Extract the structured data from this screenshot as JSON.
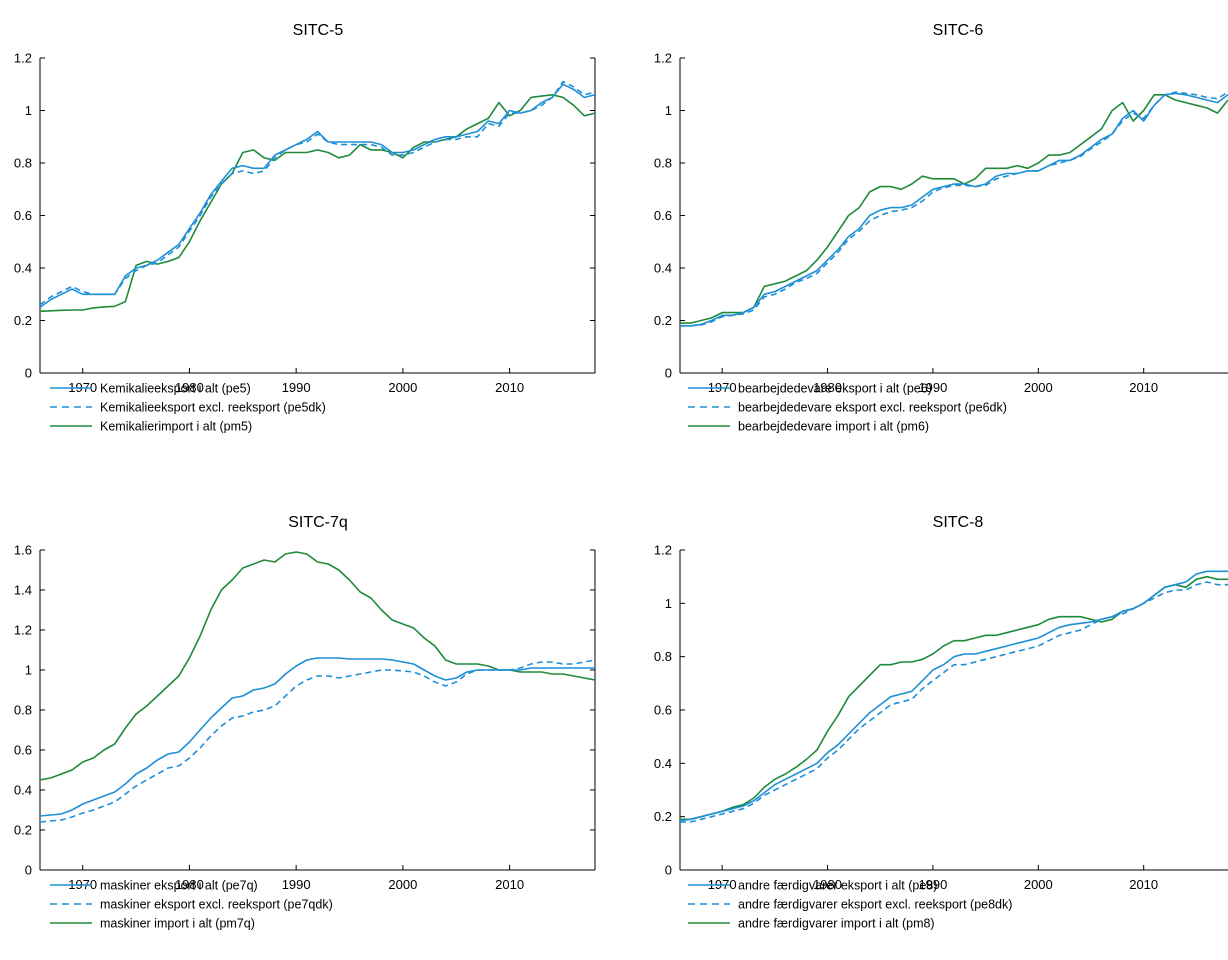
{
  "colors": {
    "export": "#1f8fd6",
    "import": "#1f8a3c"
  },
  "chart_data": [
    {
      "type": "line",
      "title": "SITC-5",
      "xlim": [
        1966,
        2018
      ],
      "ylim": [
        0,
        1.2
      ],
      "xticks": [
        1970,
        1980,
        1990,
        2000,
        2010
      ],
      "yticks": [
        0,
        0.2,
        0.4,
        0.6,
        0.8,
        1,
        1.2
      ],
      "ytick_labels": [
        "0",
        "0.2",
        "0.4",
        "0.6",
        "0.8",
        "1",
        "1.2"
      ],
      "x": [
        1966,
        1967,
        1968,
        1969,
        1970,
        1971,
        1972,
        1973,
        1974,
        1975,
        1976,
        1977,
        1978,
        1979,
        1980,
        1981,
        1982,
        1983,
        1984,
        1985,
        1986,
        1987,
        1988,
        1989,
        1990,
        1991,
        1992,
        1993,
        1994,
        1995,
        1996,
        1997,
        1998,
        1999,
        2000,
        2001,
        2002,
        2003,
        2004,
        2005,
        2006,
        2007,
        2008,
        2009,
        2010,
        2011,
        2012,
        2013,
        2014,
        2015,
        2016,
        2017,
        2018
      ],
      "series": [
        {
          "name": "Kemikalieeksport i alt (pe5)",
          "style": "solid",
          "color": "export",
          "values": [
            0.25,
            0.28,
            0.3,
            0.32,
            0.3,
            0.3,
            0.3,
            0.3,
            0.37,
            0.4,
            0.41,
            0.43,
            0.46,
            0.49,
            0.55,
            0.61,
            0.68,
            0.73,
            0.78,
            0.79,
            0.78,
            0.78,
            0.83,
            0.85,
            0.87,
            0.89,
            0.92,
            0.88,
            0.88,
            0.88,
            0.88,
            0.88,
            0.87,
            0.84,
            0.84,
            0.85,
            0.87,
            0.89,
            0.9,
            0.9,
            0.91,
            0.92,
            0.96,
            0.95,
            1.0,
            0.99,
            1.0,
            1.03,
            1.05,
            1.1,
            1.08,
            1.05,
            1.06
          ]
        },
        {
          "name": "Kemikalieeksport excl. reeksport (pe5dk)",
          "style": "dashed",
          "color": "export",
          "values": [
            0.26,
            0.29,
            0.31,
            0.33,
            0.31,
            0.3,
            0.3,
            0.3,
            0.36,
            0.39,
            0.41,
            0.42,
            0.45,
            0.48,
            0.54,
            0.6,
            0.67,
            0.72,
            0.76,
            0.77,
            0.76,
            0.77,
            0.82,
            0.85,
            0.87,
            0.88,
            0.91,
            0.88,
            0.87,
            0.87,
            0.87,
            0.87,
            0.86,
            0.83,
            0.83,
            0.84,
            0.86,
            0.88,
            0.89,
            0.89,
            0.9,
            0.9,
            0.95,
            0.94,
            0.99,
            0.99,
            1.0,
            1.02,
            1.05,
            1.11,
            1.09,
            1.06,
            1.07
          ]
        },
        {
          "name": "Kemikalierimport i alt (pm5)",
          "style": "solid",
          "color": "import",
          "values": [
            0.235,
            0.237,
            0.239,
            0.24,
            0.24,
            0.248,
            0.252,
            0.254,
            0.272,
            0.41,
            0.425,
            0.415,
            0.425,
            0.44,
            0.5,
            0.58,
            0.65,
            0.72,
            0.76,
            0.84,
            0.85,
            0.82,
            0.81,
            0.84,
            0.84,
            0.84,
            0.85,
            0.84,
            0.82,
            0.83,
            0.87,
            0.85,
            0.85,
            0.84,
            0.82,
            0.86,
            0.88,
            0.88,
            0.89,
            0.9,
            0.93,
            0.95,
            0.97,
            1.03,
            0.98,
            1.0,
            1.05,
            1.055,
            1.06,
            1.05,
            1.02,
            0.98,
            0.99
          ]
        }
      ]
    },
    {
      "type": "line",
      "title": "SITC-6",
      "xlim": [
        1966,
        2018
      ],
      "ylim": [
        0,
        1.2
      ],
      "xticks": [
        1970,
        1980,
        1990,
        2000,
        2010
      ],
      "yticks": [
        0,
        0.2,
        0.4,
        0.6,
        0.8,
        1,
        1.2
      ],
      "ytick_labels": [
        "0",
        "0.2",
        "0.4",
        "0.6",
        "0.8",
        "1",
        "1.2"
      ],
      "x": [
        1966,
        1967,
        1968,
        1969,
        1970,
        1971,
        1972,
        1973,
        1974,
        1975,
        1976,
        1977,
        1978,
        1979,
        1980,
        1981,
        1982,
        1983,
        1984,
        1985,
        1986,
        1987,
        1988,
        1989,
        1990,
        1991,
        1992,
        1993,
        1994,
        1995,
        1996,
        1997,
        1998,
        1999,
        2000,
        2001,
        2002,
        2003,
        2004,
        2005,
        2006,
        2007,
        2008,
        2009,
        2010,
        2011,
        2012,
        2013,
        2014,
        2015,
        2016,
        2017,
        2018
      ],
      "series": [
        {
          "name": "bearbejdedevare eksport i alt (pe6)",
          "style": "solid",
          "color": "export",
          "values": [
            0.18,
            0.18,
            0.185,
            0.2,
            0.22,
            0.22,
            0.23,
            0.25,
            0.3,
            0.31,
            0.33,
            0.35,
            0.37,
            0.39,
            0.43,
            0.47,
            0.52,
            0.55,
            0.6,
            0.62,
            0.63,
            0.63,
            0.64,
            0.67,
            0.7,
            0.71,
            0.72,
            0.72,
            0.71,
            0.72,
            0.75,
            0.76,
            0.76,
            0.77,
            0.77,
            0.79,
            0.81,
            0.81,
            0.83,
            0.86,
            0.89,
            0.91,
            0.97,
            1.0,
            0.96,
            1.02,
            1.06,
            1.065,
            1.06,
            1.05,
            1.04,
            1.03,
            1.06
          ]
        },
        {
          "name": "bearbejdedevare eksport excl. reeksport (pe6dk)",
          "style": "dashed",
          "color": "export",
          "values": [
            0.18,
            0.18,
            0.183,
            0.195,
            0.215,
            0.22,
            0.225,
            0.24,
            0.29,
            0.3,
            0.32,
            0.345,
            0.36,
            0.38,
            0.42,
            0.46,
            0.51,
            0.54,
            0.58,
            0.6,
            0.615,
            0.62,
            0.63,
            0.655,
            0.69,
            0.705,
            0.715,
            0.715,
            0.71,
            0.715,
            0.74,
            0.75,
            0.76,
            0.77,
            0.77,
            0.79,
            0.8,
            0.81,
            0.825,
            0.855,
            0.88,
            0.91,
            0.96,
            0.99,
            0.97,
            1.02,
            1.06,
            1.07,
            1.065,
            1.06,
            1.05,
            1.045,
            1.07
          ]
        },
        {
          "name": "bearbejdedevare import i alt (pm6)",
          "style": "solid",
          "color": "import",
          "values": [
            0.19,
            0.19,
            0.2,
            0.21,
            0.23,
            0.23,
            0.23,
            0.25,
            0.33,
            0.34,
            0.35,
            0.37,
            0.39,
            0.43,
            0.48,
            0.54,
            0.6,
            0.63,
            0.69,
            0.71,
            0.71,
            0.7,
            0.72,
            0.75,
            0.74,
            0.74,
            0.74,
            0.72,
            0.74,
            0.78,
            0.78,
            0.78,
            0.79,
            0.78,
            0.8,
            0.83,
            0.83,
            0.84,
            0.87,
            0.9,
            0.93,
            1.0,
            1.03,
            0.96,
            1.0,
            1.06,
            1.06,
            1.04,
            1.03,
            1.02,
            1.01,
            0.99,
            1.04
          ]
        }
      ]
    },
    {
      "type": "line",
      "title": "SITC-7q",
      "xlim": [
        1966,
        2018
      ],
      "ylim": [
        0,
        1.6
      ],
      "xticks": [
        1970,
        1980,
        1990,
        2000,
        2010
      ],
      "yticks": [
        0,
        0.2,
        0.4,
        0.6,
        0.8,
        1,
        1.2,
        1.4,
        1.6
      ],
      "ytick_labels": [
        "0",
        "0.2",
        "0.4",
        "0.6",
        "0.8",
        "1",
        "1.2",
        "1.4",
        "1.6"
      ],
      "x": [
        1966,
        1967,
        1968,
        1969,
        1970,
        1971,
        1972,
        1973,
        1974,
        1975,
        1976,
        1977,
        1978,
        1979,
        1980,
        1981,
        1982,
        1983,
        1984,
        1985,
        1986,
        1987,
        1988,
        1989,
        1990,
        1991,
        1992,
        1993,
        1994,
        1995,
        1996,
        1997,
        1998,
        1999,
        2000,
        2001,
        2002,
        2003,
        2004,
        2005,
        2006,
        2007,
        2008,
        2009,
        2010,
        2011,
        2012,
        2013,
        2014,
        2015,
        2016,
        2017,
        2018
      ],
      "series": [
        {
          "name": "maskiner eksport i alt (pe7q)",
          "style": "solid",
          "color": "export",
          "values": [
            0.27,
            0.275,
            0.28,
            0.3,
            0.33,
            0.35,
            0.37,
            0.39,
            0.43,
            0.48,
            0.51,
            0.55,
            0.58,
            0.59,
            0.64,
            0.7,
            0.76,
            0.81,
            0.86,
            0.87,
            0.9,
            0.91,
            0.93,
            0.98,
            1.02,
            1.05,
            1.06,
            1.06,
            1.06,
            1.055,
            1.055,
            1.055,
            1.055,
            1.05,
            1.04,
            1.03,
            1.0,
            0.97,
            0.95,
            0.96,
            0.99,
            1.0,
            1.0,
            1.0,
            1.0,
            1.0,
            1.01,
            1.01,
            1.01,
            1.01,
            1.01,
            1.01,
            1.01
          ]
        },
        {
          "name": "maskiner eksport excl. reeksport (pe7qdk)",
          "style": "dashed",
          "color": "export",
          "values": [
            0.24,
            0.245,
            0.25,
            0.265,
            0.285,
            0.3,
            0.32,
            0.34,
            0.38,
            0.42,
            0.45,
            0.48,
            0.51,
            0.52,
            0.56,
            0.61,
            0.67,
            0.72,
            0.76,
            0.77,
            0.79,
            0.8,
            0.82,
            0.87,
            0.92,
            0.95,
            0.97,
            0.97,
            0.96,
            0.97,
            0.98,
            0.99,
            1.0,
            1.0,
            0.995,
            0.99,
            0.97,
            0.94,
            0.92,
            0.94,
            0.98,
            1.0,
            1.0,
            1.0,
            1.0,
            1.01,
            1.03,
            1.04,
            1.04,
            1.03,
            1.03,
            1.04,
            1.05
          ]
        },
        {
          "name": "maskiner import i alt (pm7q)",
          "style": "solid",
          "color": "import",
          "values": [
            0.45,
            0.46,
            0.48,
            0.5,
            0.54,
            0.56,
            0.6,
            0.63,
            0.71,
            0.78,
            0.82,
            0.87,
            0.92,
            0.97,
            1.06,
            1.17,
            1.3,
            1.4,
            1.45,
            1.51,
            1.53,
            1.55,
            1.54,
            1.58,
            1.59,
            1.58,
            1.54,
            1.53,
            1.5,
            1.45,
            1.39,
            1.36,
            1.3,
            1.25,
            1.23,
            1.21,
            1.16,
            1.12,
            1.05,
            1.03,
            1.03,
            1.03,
            1.02,
            1.0,
            1.0,
            0.99,
            0.99,
            0.99,
            0.98,
            0.98,
            0.97,
            0.96,
            0.95
          ]
        }
      ]
    },
    {
      "type": "line",
      "title": "SITC-8",
      "xlim": [
        1966,
        2018
      ],
      "ylim": [
        0,
        1.2
      ],
      "xticks": [
        1970,
        1980,
        1990,
        2000,
        2010
      ],
      "yticks": [
        0,
        0.2,
        0.4,
        0.6,
        0.8,
        1,
        1.2
      ],
      "ytick_labels": [
        "0",
        "0.2",
        "0.4",
        "0.6",
        "0.8",
        "1",
        "1.2"
      ],
      "x": [
        1966,
        1967,
        1968,
        1969,
        1970,
        1971,
        1972,
        1973,
        1974,
        1975,
        1976,
        1977,
        1978,
        1979,
        1980,
        1981,
        1982,
        1983,
        1984,
        1985,
        1986,
        1987,
        1988,
        1989,
        1990,
        1991,
        1992,
        1993,
        1994,
        1995,
        1996,
        1997,
        1998,
        1999,
        2000,
        2001,
        2002,
        2003,
        2004,
        2005,
        2006,
        2007,
        2008,
        2009,
        2010,
        2011,
        2012,
        2013,
        2014,
        2015,
        2016,
        2017,
        2018
      ],
      "series": [
        {
          "name": "andre færdigvarer eksport i alt (pe8)",
          "style": "solid",
          "color": "export",
          "values": [
            0.185,
            0.19,
            0.2,
            0.21,
            0.22,
            0.23,
            0.24,
            0.26,
            0.29,
            0.32,
            0.34,
            0.36,
            0.38,
            0.4,
            0.44,
            0.47,
            0.51,
            0.55,
            0.59,
            0.62,
            0.65,
            0.66,
            0.67,
            0.71,
            0.75,
            0.77,
            0.8,
            0.81,
            0.81,
            0.82,
            0.83,
            0.84,
            0.85,
            0.86,
            0.87,
            0.89,
            0.91,
            0.92,
            0.925,
            0.93,
            0.94,
            0.95,
            0.97,
            0.98,
            1.0,
            1.03,
            1.06,
            1.07,
            1.08,
            1.11,
            1.12,
            1.12,
            1.12
          ]
        },
        {
          "name": "andre færdigvarer eksport excl. reeksport (pe8dk)",
          "style": "dashed",
          "color": "export",
          "values": [
            0.18,
            0.18,
            0.19,
            0.2,
            0.21,
            0.22,
            0.23,
            0.25,
            0.28,
            0.3,
            0.32,
            0.34,
            0.36,
            0.38,
            0.42,
            0.45,
            0.49,
            0.53,
            0.56,
            0.59,
            0.62,
            0.63,
            0.64,
            0.68,
            0.71,
            0.74,
            0.77,
            0.77,
            0.78,
            0.79,
            0.8,
            0.81,
            0.82,
            0.83,
            0.84,
            0.86,
            0.88,
            0.89,
            0.9,
            0.92,
            0.94,
            0.95,
            0.96,
            0.98,
            1.0,
            1.02,
            1.04,
            1.05,
            1.05,
            1.07,
            1.08,
            1.07,
            1.07
          ]
        },
        {
          "name": "andre færdigvarer import i alt (pm8)",
          "style": "solid",
          "color": "import",
          "values": [
            0.19,
            0.19,
            0.2,
            0.21,
            0.22,
            0.235,
            0.245,
            0.27,
            0.31,
            0.34,
            0.36,
            0.385,
            0.415,
            0.45,
            0.52,
            0.58,
            0.65,
            0.69,
            0.73,
            0.77,
            0.77,
            0.78,
            0.78,
            0.79,
            0.81,
            0.84,
            0.86,
            0.86,
            0.87,
            0.88,
            0.88,
            0.89,
            0.9,
            0.91,
            0.92,
            0.94,
            0.95,
            0.95,
            0.95,
            0.94,
            0.93,
            0.94,
            0.97,
            0.98,
            1.0,
            1.03,
            1.06,
            1.07,
            1.06,
            1.09,
            1.1,
            1.09,
            1.09
          ]
        }
      ]
    }
  ]
}
